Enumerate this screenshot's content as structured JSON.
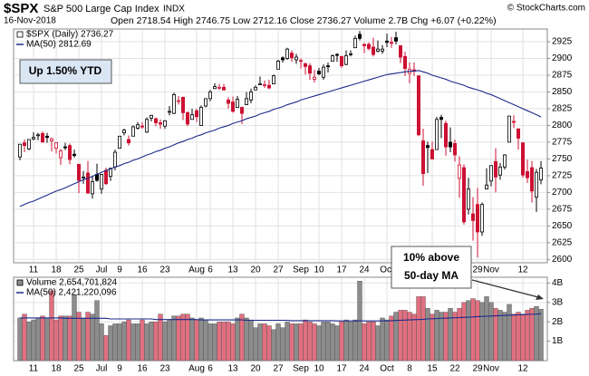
{
  "chart_data": [
    {
      "type": "candlestick",
      "title": "$SPX",
      "subtitle": "S&P 500 Large Cap Index",
      "exchange": "INDX",
      "date": "16-Nov-2018",
      "quote": "Open 2718.54 High 2746.75 Low 2712.16 Close 2736.27 Volume 2.7B Chg +6.07 (+0.22%)",
      "credit": "© StockCharts.com",
      "annotations": [
        "Up 1.50% YTD",
        "10% above",
        "50-day MA"
      ],
      "categories": [
        null,
        null,
        null,
        "11",
        null,
        null,
        null,
        null,
        "18",
        null,
        null,
        null,
        null,
        "25",
        null,
        null,
        null,
        null,
        "Jul",
        null,
        null,
        null,
        "9",
        null,
        null,
        null,
        null,
        "16",
        null,
        null,
        null,
        null,
        "23",
        null,
        null,
        null,
        null,
        null,
        null,
        "Aug",
        null,
        null,
        "6",
        null,
        null,
        null,
        null,
        "13",
        null,
        null,
        null,
        null,
        "20",
        null,
        null,
        null,
        null,
        "27",
        null,
        null,
        null,
        null,
        "Sep",
        null,
        null,
        null,
        "10",
        null,
        null,
        null,
        null,
        "17",
        null,
        null,
        null,
        null,
        "24",
        null,
        null,
        null,
        null,
        "Oct",
        null,
        null,
        null,
        null,
        "8",
        null,
        null,
        null,
        null,
        "15",
        null,
        null,
        null,
        null,
        "22",
        null,
        null,
        null,
        null,
        "29",
        null,
        null,
        "Nov",
        null,
        null,
        null,
        null,
        null,
        null,
        "12",
        null,
        null,
        null,
        null
      ],
      "series": [
        {
          "name": "$SPX (Daily) 2736.27",
          "color": "#000000",
          "down_color": "#cc1133",
          "open": [
            2753,
            2774,
            2765,
            2780,
            2785,
            2788,
            2784,
            2777,
            2766,
            2752,
            2768,
            2770,
            2757,
            2742,
            2722,
            2729,
            2698,
            2727,
            2705,
            2733,
            2724,
            2738,
            2766,
            2789,
            2779,
            2784,
            2796,
            2799,
            2790,
            2811,
            2810,
            2804,
            2799,
            2820,
            2818,
            2836,
            2842,
            2819,
            2809,
            2822,
            2800,
            2829,
            2840,
            2855,
            2856,
            2857,
            2838,
            2835,
            2827,
            2827,
            2831,
            2838,
            2853,
            2861,
            2860,
            2860,
            2862,
            2884,
            2901,
            2900,
            2908,
            2898,
            2897,
            2892,
            2889,
            2869,
            2881,
            2872,
            2889,
            2896,
            2906,
            2903,
            2891,
            2906,
            2916,
            2936,
            2921,
            2921,
            2917,
            2911,
            2911,
            2926,
            2924,
            2931,
            2919,
            2903,
            2878,
            2883,
            2874,
            2777,
            2770,
            2764,
            2764,
            2812,
            2803,
            2775,
            2773,
            2721,
            2737,
            2675,
            2668,
            2682,
            2641,
            2705,
            2717,
            2746,
            2726,
            2738,
            2775,
            2806,
            2795,
            2774,
            2731,
            2737,
            2693,
            2718.54
          ],
          "high": [
            2772,
            2779,
            2779,
            2790,
            2789,
            2791,
            2789,
            2782,
            2775,
            2765,
            2774,
            2773,
            2764,
            2742,
            2732,
            2747,
            2725,
            2743,
            2727,
            2737,
            2737,
            2764,
            2784,
            2795,
            2785,
            2800,
            2805,
            2805,
            2812,
            2816,
            2812,
            2809,
            2808,
            2829,
            2849,
            2844,
            2843,
            2821,
            2825,
            2825,
            2830,
            2840,
            2853,
            2863,
            2862,
            2862,
            2842,
            2843,
            2844,
            2828,
            2850,
            2855,
            2860,
            2873,
            2867,
            2868,
            2876,
            2898,
            2903,
            2916,
            2912,
            2907,
            2900,
            2894,
            2893,
            2883,
            2886,
            2891,
            2894,
            2906,
            2908,
            2904,
            2912,
            2912,
            2934,
            2941,
            2923,
            2924,
            2931,
            2927,
            2920,
            2937,
            2932,
            2940,
            2920,
            2910,
            2894,
            2894,
            2875,
            2795,
            2776,
            2776,
            2813,
            2816,
            2807,
            2797,
            2779,
            2754,
            2742,
            2722,
            2693,
            2707,
            2685,
            2736,
            2741,
            2766,
            2744,
            2757,
            2814,
            2815,
            2795,
            2775,
            2749,
            2747,
            2735,
            2746.75
          ],
          "low": [
            2748,
            2760,
            2763,
            2778,
            2778,
            2775,
            2774,
            2761,
            2758,
            2741,
            2763,
            2742,
            2752,
            2699,
            2713,
            2698,
            2691,
            2716,
            2698,
            2711,
            2717,
            2733,
            2766,
            2785,
            2770,
            2784,
            2794,
            2795,
            2789,
            2806,
            2799,
            2795,
            2795,
            2815,
            2817,
            2831,
            2808,
            2799,
            2809,
            2805,
            2800,
            2827,
            2836,
            2855,
            2853,
            2852,
            2825,
            2819,
            2827,
            2802,
            2831,
            2833,
            2853,
            2861,
            2856,
            2854,
            2862,
            2884,
            2894,
            2898,
            2895,
            2892,
            2885,
            2876,
            2868,
            2864,
            2875,
            2868,
            2879,
            2896,
            2895,
            2886,
            2890,
            2903,
            2916,
            2927,
            2908,
            2912,
            2903,
            2909,
            2907,
            2917,
            2916,
            2921,
            2893,
            2874,
            2863,
            2874,
            2784,
            2710,
            2729,
            2749,
            2764,
            2781,
            2755,
            2760,
            2746,
            2692,
            2652,
            2667,
            2628,
            2603,
            2635,
            2705,
            2709,
            2700,
            2719,
            2734,
            2775,
            2796,
            2764,
            2722,
            2714,
            2685,
            2671,
            2712.16
          ],
          "close": [
            2772,
            2770,
            2779,
            2782,
            2786,
            2775,
            2782,
            2780,
            2774,
            2762,
            2767,
            2749,
            2755,
            2718,
            2723,
            2699,
            2716,
            2718,
            2727,
            2713,
            2736,
            2760,
            2784,
            2793,
            2774,
            2798,
            2801,
            2798,
            2809,
            2815,
            2804,
            2802,
            2807,
            2821,
            2846,
            2837,
            2819,
            2802,
            2816,
            2813,
            2827,
            2840,
            2850,
            2858,
            2857,
            2853,
            2833,
            2821,
            2839,
            2818,
            2840,
            2850,
            2857,
            2862,
            2861,
            2856,
            2874,
            2896,
            2898,
            2914,
            2901,
            2902,
            2896,
            2888,
            2878,
            2872,
            2877,
            2887,
            2888,
            2904,
            2905,
            2889,
            2904,
            2907,
            2930,
            2930,
            2919,
            2915,
            2906,
            2914,
            2914,
            2924,
            2923,
            2926,
            2902,
            2885,
            2884,
            2881,
            2786,
            2728,
            2767,
            2750,
            2809,
            2809,
            2768,
            2768,
            2756,
            2741,
            2656,
            2705,
            2658,
            2641,
            2682,
            2711,
            2740,
            2723,
            2738,
            2756,
            2814,
            2806,
            2781,
            2726,
            2722,
            2702,
            2730,
            2736.27
          ]
        },
        {
          "name": "MA(50) 2812.69",
          "type": "line",
          "color": "#1c2a8c",
          "values": [
            2679,
            2682,
            2685,
            2687,
            2690,
            2693,
            2696,
            2699,
            2702,
            2704,
            2707,
            2710,
            2713,
            2716,
            2719,
            2721,
            2724,
            2727,
            2730,
            2733,
            2735,
            2738,
            2740,
            2743,
            2745,
            2748,
            2750,
            2753,
            2756,
            2758,
            2761,
            2763,
            2766,
            2768,
            2771,
            2774,
            2776,
            2779,
            2781,
            2784,
            2786,
            2789,
            2791,
            2793,
            2796,
            2798,
            2800,
            2803,
            2805,
            2807,
            2810,
            2812,
            2814,
            2817,
            2819,
            2821,
            2824,
            2826,
            2828,
            2831,
            2833,
            2835,
            2838,
            2840,
            2842,
            2844,
            2846,
            2848,
            2850,
            2852,
            2854,
            2856,
            2858,
            2860,
            2862,
            2864,
            2866,
            2868,
            2870,
            2872,
            2874,
            2876,
            2877,
            2878,
            2879,
            2880,
            2881,
            2881,
            2882,
            2880,
            2878,
            2875,
            2873,
            2871,
            2869,
            2866,
            2864,
            2862,
            2860,
            2857,
            2855,
            2853,
            2851,
            2848,
            2846,
            2843,
            2840,
            2837,
            2834,
            2831,
            2828,
            2825,
            2822,
            2819,
            2816,
            2812.69
          ]
        }
      ],
      "ylim": [
        2595,
        2944
      ],
      "yticks": [
        2600,
        2625,
        2650,
        2675,
        2700,
        2725,
        2750,
        2775,
        2800,
        2825,
        2850,
        2875,
        2900,
        2925
      ],
      "grid": true
    },
    {
      "type": "bar",
      "categories": [
        null,
        null,
        null,
        "11",
        null,
        null,
        null,
        null,
        "18",
        null,
        null,
        null,
        null,
        "25",
        null,
        null,
        null,
        null,
        "Jul",
        null,
        null,
        null,
        "9",
        null,
        null,
        null,
        null,
        "16",
        null,
        null,
        null,
        null,
        "23",
        null,
        null,
        null,
        null,
        null,
        null,
        "Aug",
        null,
        null,
        "6",
        null,
        null,
        null,
        null,
        "13",
        null,
        null,
        null,
        null,
        "20",
        null,
        null,
        null,
        null,
        "27",
        null,
        null,
        null,
        null,
        "Sep",
        null,
        null,
        null,
        "10",
        null,
        null,
        null,
        null,
        "17",
        null,
        null,
        null,
        null,
        "24",
        null,
        null,
        null,
        null,
        "Oct",
        null,
        null,
        null,
        null,
        "8",
        null,
        null,
        null,
        null,
        "15",
        null,
        null,
        null,
        null,
        "22",
        null,
        null,
        null,
        null,
        "29",
        null,
        null,
        "Nov",
        null,
        null,
        null,
        null,
        null,
        null,
        "12",
        null,
        null,
        null,
        null
      ],
      "series": [
        {
          "name": "Volume 2,654,701,824",
          "color": "#8c8c8c",
          "down_color": "#e07080",
          "values": [
            2.2,
            2.4,
            2.0,
            2.1,
            2.2,
            2.3,
            2.2,
            3.6,
            2.1,
            2.3,
            2.3,
            2.3,
            3.4,
            2.5,
            2.2,
            2.5,
            2.4,
            3.1,
            1.9,
            1.3,
            1.8,
            1.9,
            1.9,
            2.0,
            2.1,
            1.9,
            1.9,
            2.1,
            1.9,
            2.0,
            2.0,
            2.4,
            2.0,
            2.1,
            2.3,
            2.3,
            2.4,
            2.4,
            2.2,
            2.1,
            2.2,
            2.1,
            1.9,
            1.9,
            2.0,
            2.0,
            2.0,
            1.9,
            2.2,
            2.4,
            2.2,
            2.1,
            1.7,
            1.9,
            1.9,
            1.8,
            1.6,
            1.9,
            1.7,
            2.0,
            1.9,
            1.9,
            1.9,
            2.1,
            2.0,
            1.9,
            1.8,
            2.0,
            2.0,
            1.9,
            1.8,
            2.0,
            2.1,
            2.0,
            2.1,
            4.1,
            1.9,
            2.0,
            2.0,
            1.8,
            2.2,
            2.1,
            2.3,
            2.5,
            2.6,
            2.6,
            2.5,
            2.4,
            3.3,
            3.3,
            2.7,
            2.4,
            2.6,
            2.5,
            2.5,
            2.7,
            2.5,
            2.7,
            3.0,
            3.1,
            3.2,
            3.1,
            3.0,
            3.3,
            3.0,
            2.7,
            2.6,
            2.5,
            2.9,
            2.4,
            2.5,
            2.4,
            2.6,
            2.7,
            2.8,
            2.65
          ]
        },
        {
          "name": "MA(50) 2,421,220,096",
          "type": "line",
          "color": "#1c2a8c",
          "values": [
            2.2,
            2.2,
            2.2,
            2.2,
            2.2,
            2.2,
            2.2,
            2.2,
            2.2,
            2.2,
            2.18,
            2.18,
            2.18,
            2.18,
            2.18,
            2.18,
            2.18,
            2.18,
            2.18,
            2.18,
            2.15,
            2.15,
            2.15,
            2.15,
            2.15,
            2.15,
            2.15,
            2.15,
            2.15,
            2.15,
            2.12,
            2.12,
            2.12,
            2.12,
            2.12,
            2.12,
            2.12,
            2.12,
            2.12,
            2.12,
            2.1,
            2.1,
            2.1,
            2.1,
            2.1,
            2.1,
            2.1,
            2.1,
            2.1,
            2.1,
            2.08,
            2.08,
            2.08,
            2.08,
            2.08,
            2.08,
            2.08,
            2.08,
            2.08,
            2.08,
            2.06,
            2.06,
            2.06,
            2.06,
            2.06,
            2.06,
            2.06,
            2.06,
            2.06,
            2.06,
            2.05,
            2.05,
            2.05,
            2.05,
            2.05,
            2.05,
            2.05,
            2.05,
            2.05,
            2.05,
            2.05,
            2.05,
            2.06,
            2.07,
            2.08,
            2.09,
            2.1,
            2.11,
            2.12,
            2.13,
            2.15,
            2.16,
            2.17,
            2.18,
            2.19,
            2.2,
            2.21,
            2.22,
            2.23,
            2.24,
            2.25,
            2.27,
            2.28,
            2.29,
            2.3,
            2.31,
            2.32,
            2.33,
            2.34,
            2.35,
            2.36,
            2.37,
            2.38,
            2.39,
            2.4,
            2.42
          ]
        }
      ],
      "ylim": [
        0,
        4.3
      ],
      "yticks": [
        {
          "value": 1,
          "label": "1B"
        },
        {
          "value": 2,
          "label": "2B"
        },
        {
          "value": 3,
          "label": "3B"
        },
        {
          "value": 4,
          "label": "4B"
        }
      ],
      "grid": true
    }
  ]
}
